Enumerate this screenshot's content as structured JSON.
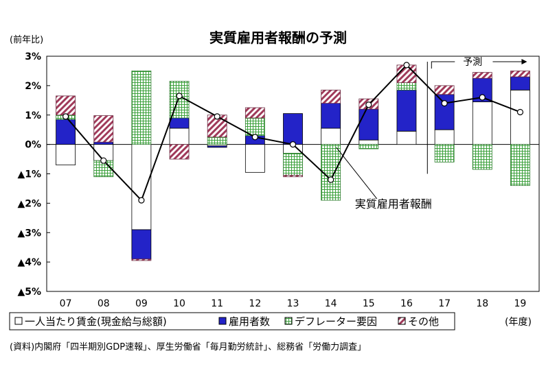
{
  "chart_data": {
    "type": "bar",
    "title": "実質雇用者報酬の予測",
    "y_unit_label": "(前年比)",
    "x_unit_label": "(年度)",
    "categories": [
      "07",
      "08",
      "09",
      "10",
      "11",
      "12",
      "13",
      "14",
      "15",
      "16",
      "17",
      "18",
      "19"
    ],
    "ylim": [
      -5,
      3
    ],
    "y_ticks": [
      {
        "value": 3,
        "label": "3%"
      },
      {
        "value": 2,
        "label": "2%"
      },
      {
        "value": 1,
        "label": "1%"
      },
      {
        "value": 0,
        "label": "0%"
      },
      {
        "value": -1,
        "label": "▲1%"
      },
      {
        "value": -2,
        "label": "▲2%"
      },
      {
        "value": -3,
        "label": "▲3%"
      },
      {
        "value": -4,
        "label": "▲4%"
      },
      {
        "value": -5,
        "label": "▲5%"
      }
    ],
    "series": [
      {
        "name": "一人当たり賃金(現金給与総額)",
        "style": "white",
        "values": [
          -0.7,
          -0.55,
          -2.9,
          0.55,
          -0.05,
          -0.95,
          -0.3,
          0.55,
          0.15,
          0.45,
          0.5,
          1.45,
          1.85
        ]
      },
      {
        "name": "雇用者数",
        "style": "blue",
        "values": [
          0.85,
          0.08,
          -1.0,
          0.35,
          -0.05,
          0.3,
          1.05,
          0.85,
          1.05,
          1.4,
          1.2,
          0.8,
          0.45
        ]
      },
      {
        "name": "デフレーター要因",
        "style": "green_grid",
        "values": [
          0.15,
          -0.55,
          2.5,
          1.25,
          0.25,
          0.6,
          -0.75,
          -1.9,
          -0.15,
          0.25,
          -0.6,
          -0.85,
          -1.4
        ]
      },
      {
        "name": "その他",
        "style": "red_hatch",
        "values": [
          0.65,
          0.9,
          -0.05,
          -0.5,
          0.75,
          0.35,
          -0.05,
          0.45,
          0.35,
          0.6,
          0.3,
          0.2,
          0.2
        ]
      }
    ],
    "line": {
      "name": "実質雇用者報酬",
      "values": [
        0.95,
        -0.55,
        -1.9,
        1.65,
        0.95,
        0.25,
        0.0,
        -1.2,
        1.35,
        2.7,
        1.4,
        1.6,
        1.1
      ]
    },
    "annotations": {
      "forecast_label": "予測",
      "line_label": "実質雇用者報酬"
    },
    "colors": {
      "blue": "#2323c8",
      "green": "#3aa03a",
      "red_hatch": "#a03a5a",
      "axis": "#000000"
    },
    "legend_position": "bottom",
    "source": "(資料)内閣府「四半期別GDP速報」、厚生労働省「毎月勤労統計」、総務省「労働力調査」"
  }
}
